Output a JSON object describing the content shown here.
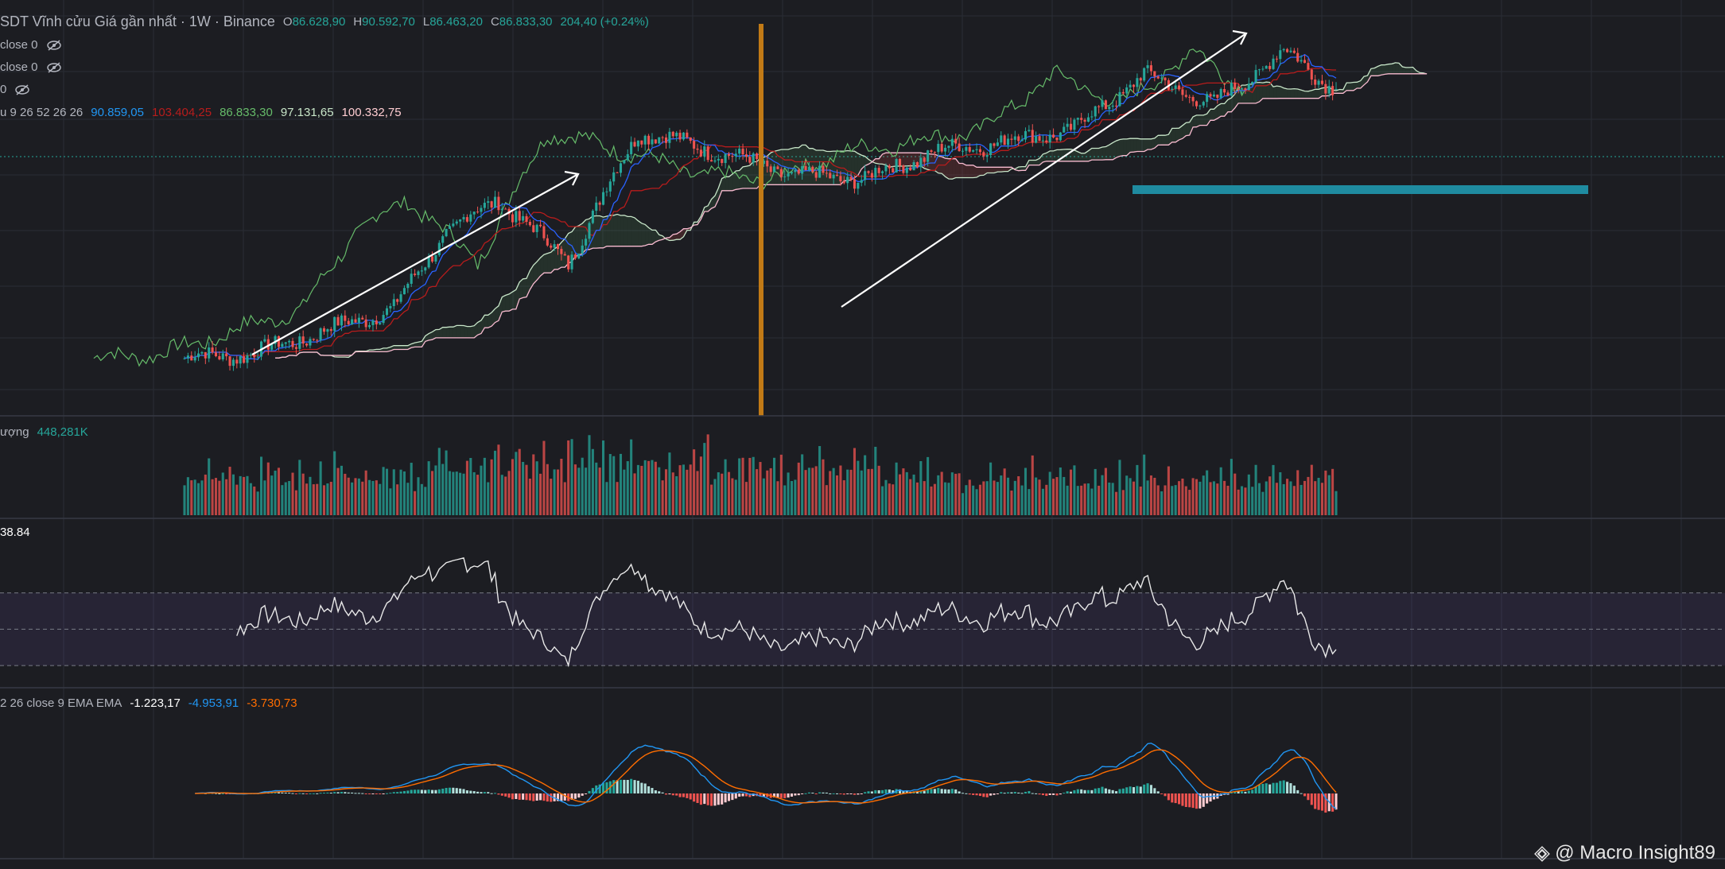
{
  "header": {
    "symbol_title": "SDT Vĩnh cửu Giá gần nhất · 1W · Binance",
    "open_label": "O",
    "open_value": "86.628,90",
    "high_label": "H",
    "high_value": "90.592,70",
    "low_label": "L",
    "low_value": "86.463,20",
    "close_label": "C",
    "close_value": "86.833,30",
    "change": "204,40 (+0.24%)"
  },
  "indicators": {
    "ma1": "close 0",
    "ma2": "close 0",
    "ma3": "0",
    "ichimoku_label": "u 9 26 52 26 26",
    "ichimoku_values": [
      "90.859,05",
      "103.404,25",
      "86.833,30",
      "97.131,65",
      "100.332,75"
    ],
    "volume_label": "ượng",
    "volume_value": "448,281K",
    "rsi_value": "38.84",
    "macd_label": "2 26 close 9 EMA EMA",
    "macd_values": [
      "-1.223,17",
      "-4.953,91",
      "-3.730,73"
    ]
  },
  "watermark": "@ Macro Insight89",
  "colors": {
    "background": "#1c1d22",
    "up": "#26a69a",
    "down": "#ef5350",
    "ichimoku_blue": "#2962ff",
    "ichimoku_red": "#b71c1c",
    "span_green": "#66bb6a",
    "kumo_edge": "#f8bbd0",
    "support_zone": "#1f8ba0",
    "vertical_marker": "#c17a16",
    "rsi_band": "#7e57c2",
    "macd_line": "#2196f3",
    "signal_line": "#ff6d00"
  },
  "chart_data": {
    "type": "candlestick-with-indicators",
    "timeframe": "1W",
    "source": "Binance",
    "last_candle": {
      "open": 86628.9,
      "high": 90592.7,
      "low": 86463.2,
      "close": 86833.3,
      "change": 204.4,
      "change_pct": 0.24
    },
    "ichimoku_last": {
      "conversion": 90859.05,
      "base": 103404.25,
      "lagging": 86833.3,
      "lead_a": 97131.65,
      "lead_b": 100332.75
    },
    "volume_last": "448,281K",
    "rsi_last": 38.84,
    "macd_last": {
      "histogram": -1223.17,
      "macd": -4953.91,
      "signal": -3730.73
    },
    "price_path_keypoints": [
      {
        "week": 0,
        "close": 16500
      },
      {
        "week": 20,
        "close": 17000
      },
      {
        "week": 40,
        "close": 19500
      },
      {
        "week": 60,
        "close": 22500
      },
      {
        "week": 75,
        "close": 36000
      },
      {
        "week": 90,
        "close": 44000
      },
      {
        "week": 110,
        "close": 30000
      },
      {
        "week": 130,
        "close": 67000
      },
      {
        "week": 150,
        "close": 60000
      },
      {
        "week": 175,
        "close": 51000
      },
      {
        "week": 195,
        "close": 50000
      },
      {
        "week": 215,
        "close": 59000
      },
      {
        "week": 240,
        "close": 64000
      },
      {
        "week": 255,
        "close": 68000
      },
      {
        "week": 275,
        "close": 95000
      },
      {
        "week": 295,
        "close": 79000
      },
      {
        "week": 315,
        "close": 110000
      },
      {
        "week": 330,
        "close": 87000
      }
    ],
    "annotations": [
      "uptrend arrow 1",
      "uptrend arrow 2",
      "vertical marker",
      "support zone"
    ]
  }
}
